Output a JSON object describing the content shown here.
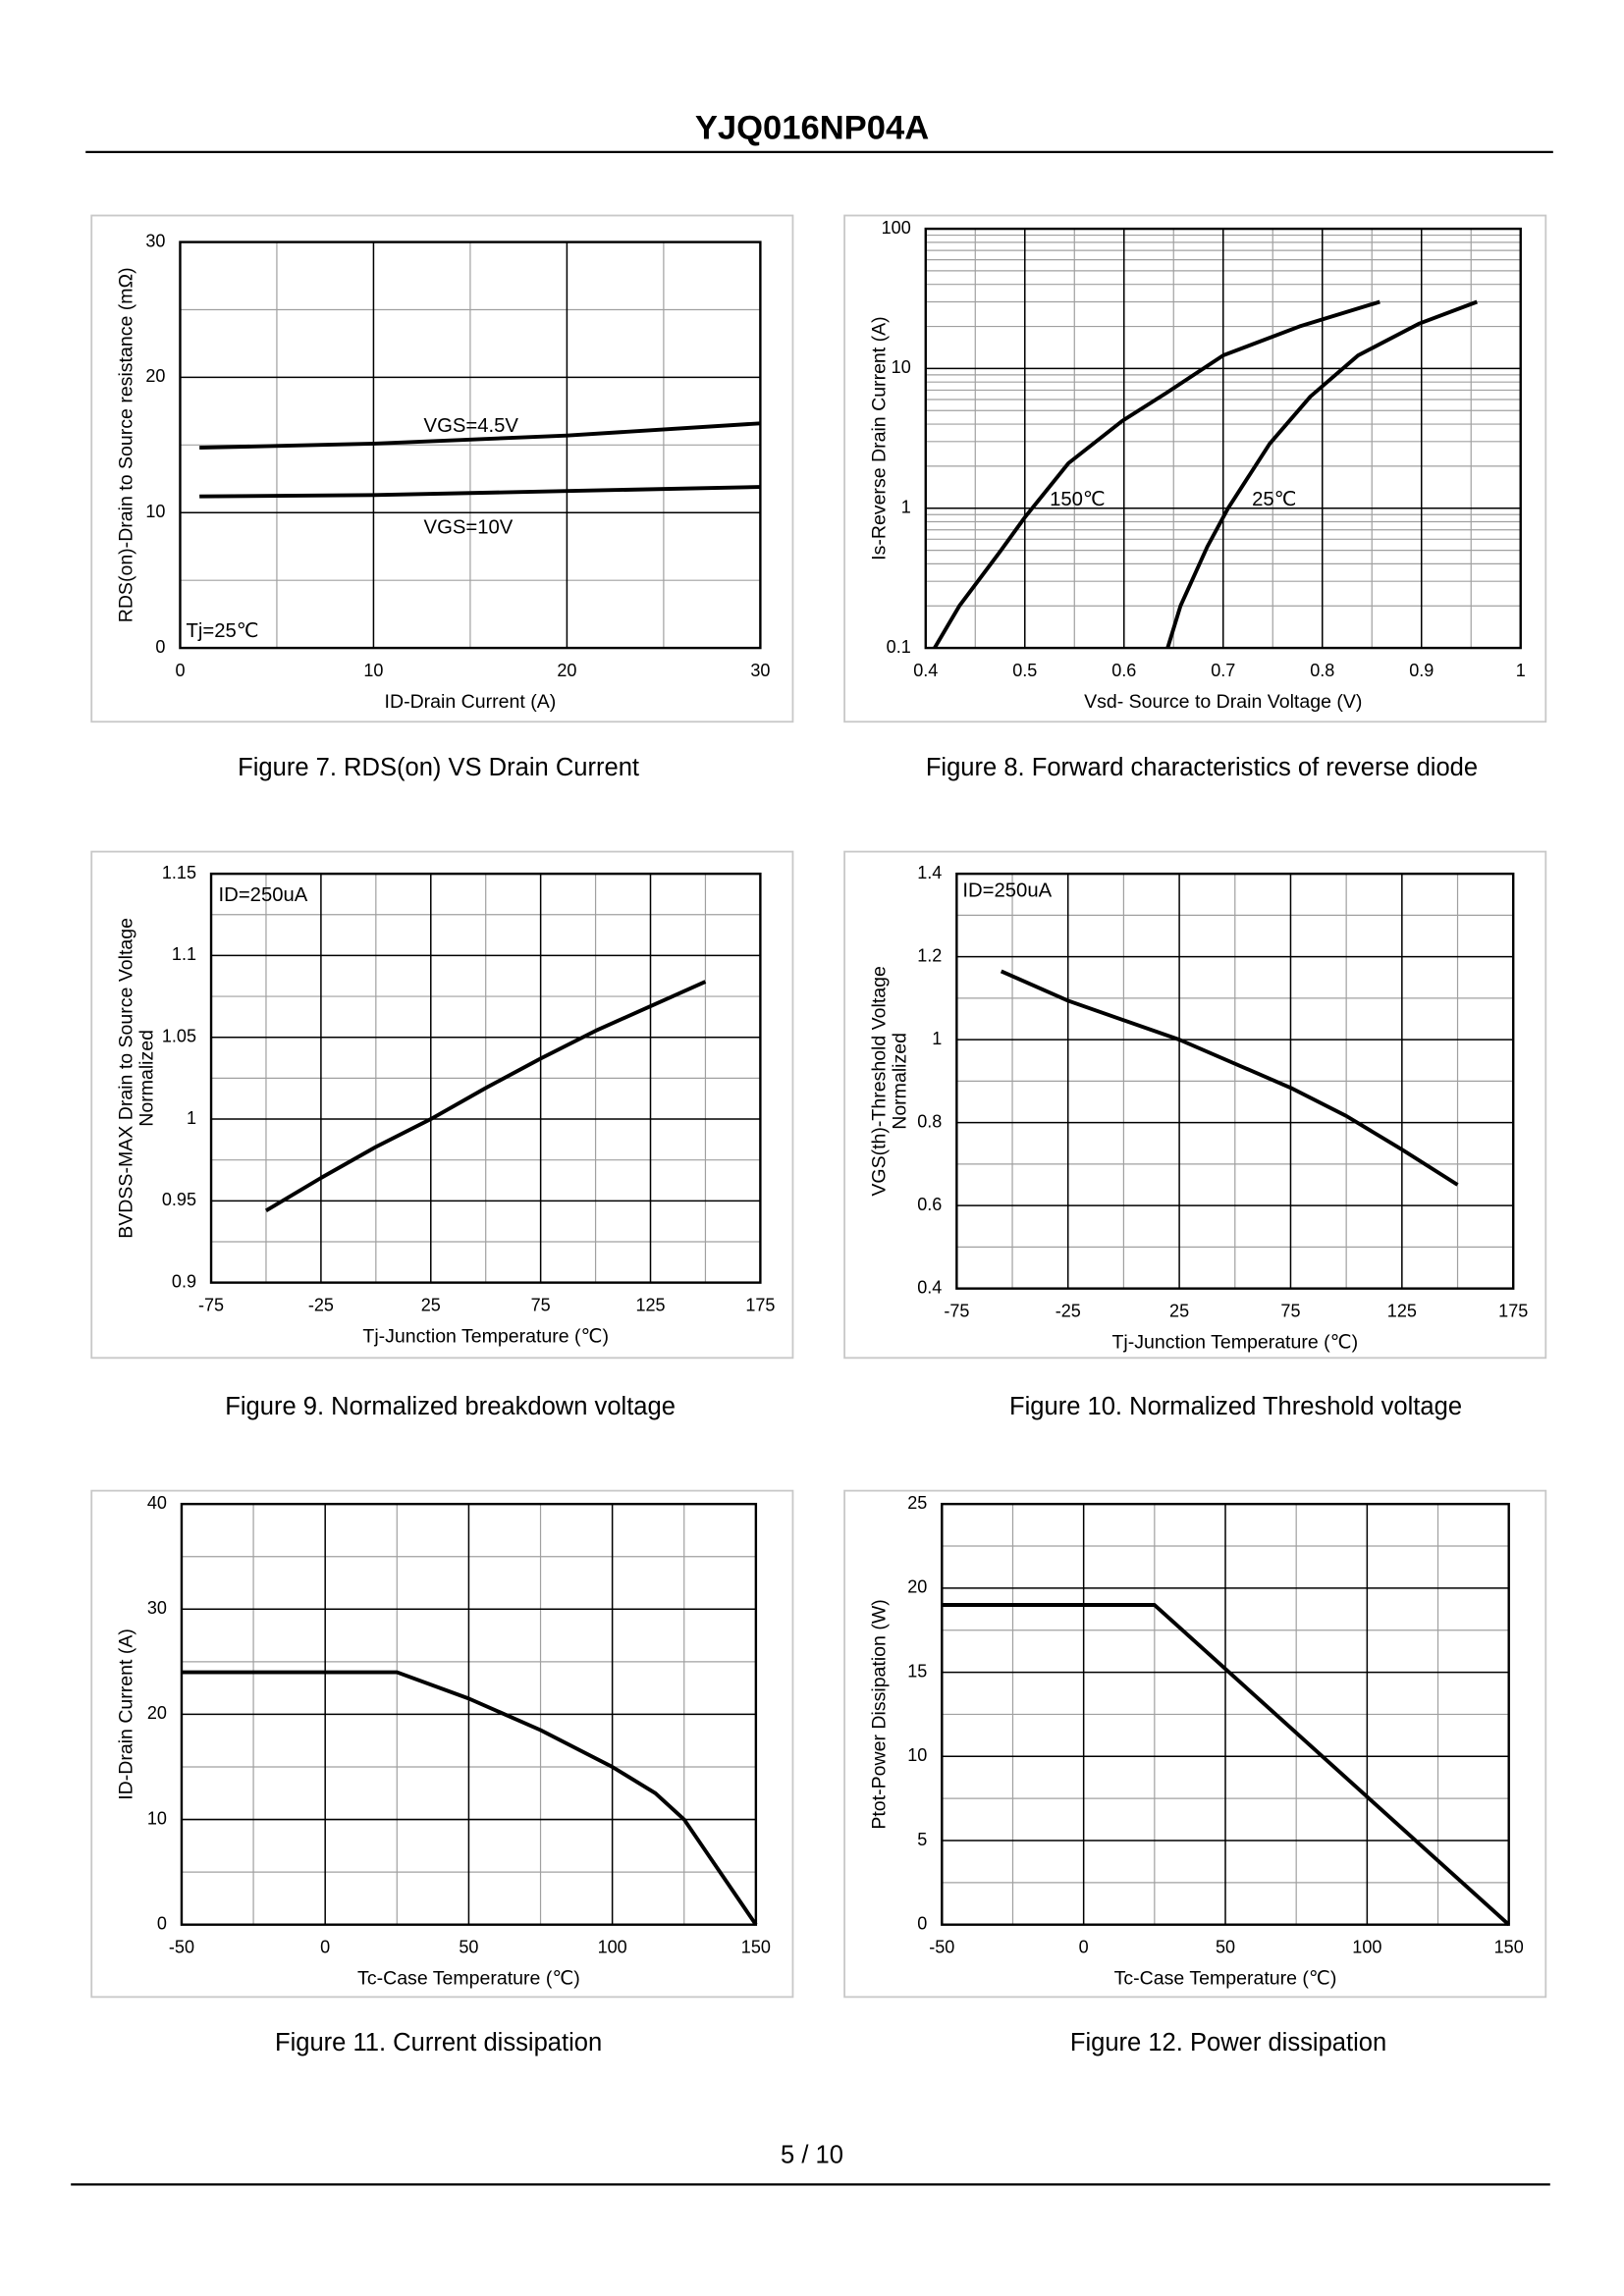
{
  "header": {
    "title": "YJQ016NP04A"
  },
  "footer": {
    "page": "5 / 10"
  },
  "chart_data": [
    {
      "type": "line",
      "caption": "Figure 7.  RDS(on) VS Drain Current",
      "xlabel": "ID-Drain Current (A)",
      "ylabel": "RDS(on)-Drain to Source resistance (mΩ)",
      "annotation": "Tj=25℃",
      "xlim": [
        0,
        30
      ],
      "xticks": [
        0,
        10,
        20,
        30
      ],
      "minor_xticks": [
        5,
        15,
        25
      ],
      "ylim": [
        0,
        30
      ],
      "yticks": [
        0,
        10,
        20,
        30
      ],
      "minor_yticks": [
        5,
        15,
        25
      ],
      "series": [
        {
          "name": "VGS=4.5V",
          "color": "#000000",
          "x": [
            1,
            10,
            20,
            30
          ],
          "values": [
            14.8,
            15.1,
            15.7,
            16.6
          ]
        },
        {
          "name": "VGS=10V",
          "color": "#000000",
          "x": [
            1,
            10,
            20,
            30
          ],
          "values": [
            11.2,
            11.3,
            11.6,
            11.9
          ]
        }
      ]
    },
    {
      "type": "line",
      "caption": "Figure 8.  Forward characteristics of reverse diode",
      "xlabel": "Vsd- Source to Drain Voltage (V)",
      "ylabel": "Is-Reverse  Drain Current (A)",
      "log_y": true,
      "xlim": [
        0.4,
        1
      ],
      "xticks": [
        0.4,
        0.5,
        0.6,
        0.7,
        0.8,
        0.9,
        1
      ],
      "minor_xticks": [
        0.45,
        0.55,
        0.65,
        0.75,
        0.85,
        0.95
      ],
      "ylim": [
        0.1,
        100
      ],
      "yticks": [
        0.1,
        1,
        10,
        100
      ],
      "minor_yticks": [
        0.2,
        0.3,
        0.4,
        0.5,
        0.6,
        0.7,
        0.8,
        0.9,
        2,
        3,
        4,
        5,
        6,
        7,
        8,
        9,
        20,
        30,
        40,
        50,
        60,
        70,
        80,
        90
      ],
      "series": [
        {
          "name": "150℃",
          "color": "#000000",
          "x": [
            0.409,
            0.434,
            0.476,
            0.5,
            0.544,
            0.598,
            0.643,
            0.7,
            0.777,
            0.858
          ],
          "values": [
            0.1,
            0.2,
            0.5,
            0.86,
            2.1,
            4.2,
            6.7,
            12.4,
            20,
            30
          ]
        },
        {
          "name": "25℃",
          "color": "#000000",
          "x": [
            0.644,
            0.657,
            0.684,
            0.705,
            0.747,
            0.788,
            0.836,
            0.898,
            0.956
          ],
          "values": [
            0.1,
            0.2,
            0.53,
            1,
            2.9,
            6.3,
            12.4,
            21,
            30
          ]
        }
      ]
    },
    {
      "type": "line",
      "caption": "Figure 9.  Normalized breakdown voltage",
      "xlabel": "Tj-Junction  Temperature (℃)",
      "ylabel": [
        "BVDSS-MAX Drain to Source Voltage",
        "Normalized"
      ],
      "annotation": "ID=250uA",
      "xlim": [
        -75,
        175
      ],
      "xticks": [
        -75,
        -25,
        25,
        75,
        125,
        175
      ],
      "minor_xticks": [
        -50,
        0,
        50,
        100,
        150
      ],
      "ylim": [
        0.9,
        1.15
      ],
      "yticks": [
        0.9,
        0.95,
        1,
        1.05,
        1.1,
        1.15
      ],
      "minor_yticks": [
        0.925,
        0.975,
        1.025,
        1.075,
        1.125
      ],
      "series": [
        {
          "name": "BVDSS",
          "color": "#000000",
          "x": [
            -50,
            -25,
            0,
            25,
            50,
            75,
            100,
            125,
            150
          ],
          "values": [
            0.944,
            0.964,
            0.983,
            1.0,
            1.019,
            1.037,
            1.054,
            1.069,
            1.084
          ]
        }
      ]
    },
    {
      "type": "line",
      "caption": "Figure 10.  Normalized Threshold voltage",
      "xlabel": "Tj-Junction  Temperature (℃)",
      "ylabel": [
        "VGS(th)-Threshold  Voltage",
        "Normalized"
      ],
      "annotation": "ID=250uA",
      "xlim": [
        -75,
        175
      ],
      "xticks": [
        -75,
        -25,
        25,
        75,
        125,
        175
      ],
      "minor_xticks": [
        -50,
        0,
        50,
        100,
        150
      ],
      "ylim": [
        0.4,
        1.4
      ],
      "yticks": [
        0.4,
        0.6,
        0.8,
        1,
        1.2,
        1.4
      ],
      "minor_yticks": [
        0.5,
        0.7,
        0.9,
        1.1,
        1.3
      ],
      "series": [
        {
          "name": "VGS(th)",
          "color": "#000000",
          "x": [
            -55,
            -25,
            25,
            75,
            100,
            125,
            150
          ],
          "values": [
            1.165,
            1.094,
            1.0,
            0.884,
            0.816,
            0.735,
            0.65
          ]
        }
      ]
    },
    {
      "type": "line",
      "caption": "Figure 11.  Current dissipation",
      "xlabel": "Tc-Case Temperature (℃)",
      "ylabel": "ID-Drain Current (A)",
      "xlim": [
        -50,
        150
      ],
      "xticks": [
        -50,
        0,
        50,
        100,
        150
      ],
      "minor_xticks": [
        -25,
        25,
        75,
        125
      ],
      "ylim": [
        0,
        40
      ],
      "yticks": [
        0,
        10,
        20,
        30,
        40
      ],
      "minor_yticks": [
        5,
        15,
        25,
        35
      ],
      "series": [
        {
          "name": "ID",
          "color": "#000000",
          "x": [
            -50,
            25,
            50,
            75,
            100,
            115,
            125,
            135,
            150
          ],
          "values": [
            24,
            24,
            21.5,
            18.5,
            15,
            12.5,
            10,
            6,
            0
          ]
        }
      ]
    },
    {
      "type": "line",
      "caption": "Figure 12.  Power dissipation",
      "xlabel": "Tc-Case Temperature (℃)",
      "ylabel": "Ptot-Power Dissipation (W)",
      "xlim": [
        -50,
        150
      ],
      "xticks": [
        -50,
        0,
        50,
        100,
        150
      ],
      "minor_xticks": [
        -25,
        25,
        75,
        125
      ],
      "ylim": [
        0,
        25
      ],
      "yticks": [
        0,
        5,
        10,
        15,
        20,
        25
      ],
      "minor_yticks": [
        2.5,
        7.5,
        12.5,
        17.5,
        22.5
      ],
      "series": [
        {
          "name": "Ptot",
          "color": "#000000",
          "x": [
            -50,
            25,
            150
          ],
          "values": [
            19,
            19,
            0
          ]
        }
      ]
    }
  ]
}
